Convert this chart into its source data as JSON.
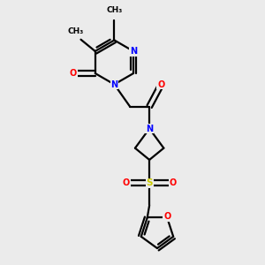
{
  "background_color": "#ebebeb",
  "bond_color": "#000000",
  "atom_colors": {
    "N": "#0000ff",
    "O": "#ff0000",
    "S": "#cccc00",
    "C": "#000000"
  },
  "figsize": [
    3.0,
    3.0
  ],
  "dpi": 100
}
